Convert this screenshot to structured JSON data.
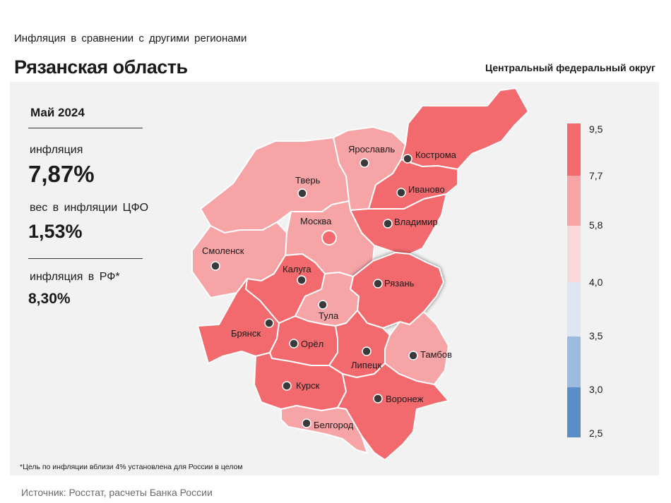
{
  "header": {
    "subtitle": "Инфляция  в сравнении  с другими  регионами",
    "title": "Рязанская область",
    "district": "Центральный федеральный округ"
  },
  "stats": {
    "period": "Май 2024",
    "inflation_label": "инфляция",
    "inflation_value": "7,87%",
    "weight_label": "вес в инфляции  ЦФО",
    "weight_value": "1,53%",
    "rf_label": "инфляция  в РФ*",
    "rf_value": "8,30%"
  },
  "legend": {
    "ticks": [
      "9,5",
      "7,7",
      "5,8",
      "4,0",
      "3,5",
      "3,0",
      "2,5"
    ],
    "colors": [
      "#f26a6e",
      "#f7a4a7",
      "#fad9dc",
      "#dde6f2",
      "#9dbadf",
      "#5b8ec9"
    ]
  },
  "map": {
    "selected_region": "Рязань",
    "regions": [
      {
        "name": "Ярославль",
        "fill": "#f7a4a7"
      },
      {
        "name": "Кострома",
        "fill": "#f26a6e"
      },
      {
        "name": "Тверь",
        "fill": "#f7a4a7"
      },
      {
        "name": "Иваново",
        "fill": "#f26a6e"
      },
      {
        "name": "Москва",
        "fill": "#f7a4a7"
      },
      {
        "name": "Владимир",
        "fill": "#f26a6e"
      },
      {
        "name": "Смоленск",
        "fill": "#f7a4a7"
      },
      {
        "name": "Калуга",
        "fill": "#f26a6e"
      },
      {
        "name": "Рязань",
        "fill": "#f26a6e"
      },
      {
        "name": "Тула",
        "fill": "#f7a4a7"
      },
      {
        "name": "Брянск",
        "fill": "#f26a6e"
      },
      {
        "name": "Орёл",
        "fill": "#f26a6e"
      },
      {
        "name": "Липецк",
        "fill": "#f26a6e"
      },
      {
        "name": "Тамбов",
        "fill": "#f7a4a7"
      },
      {
        "name": "Курск",
        "fill": "#f26a6e"
      },
      {
        "name": "Воронеж",
        "fill": "#f26a6e"
      },
      {
        "name": "Белгород",
        "fill": "#f7a4a7"
      }
    ]
  },
  "footnote": "*Цель по инфляции вблизи 4% установлена для России в целом",
  "source": "Источник: Росстат, расчеты Банка России"
}
